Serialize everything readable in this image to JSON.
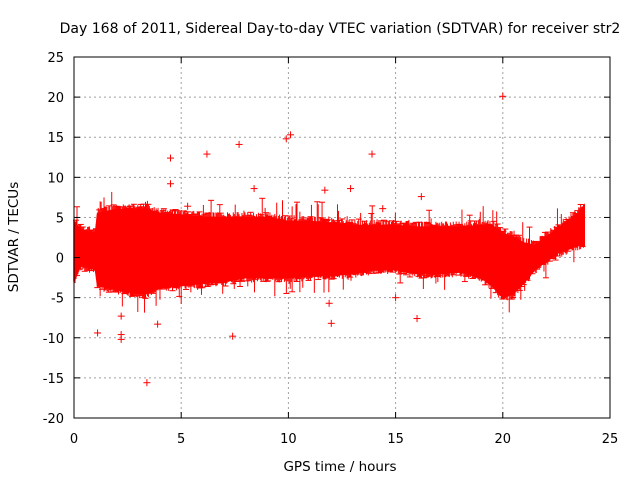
{
  "chart_data": {
    "type": "scatter",
    "title": "Day 168 of 2011, Sidereal Day-to-day VTEC variation (SDTVAR) for receiver str2",
    "xlabel": "GPS time / hours",
    "ylabel": "SDTVAR / TECUs",
    "xlim": [
      0,
      25
    ],
    "ylim": [
      -20,
      25
    ],
    "xticks": [
      0,
      5,
      10,
      15,
      20,
      25
    ],
    "xtick_labels": [
      "0",
      "5",
      "10",
      "15",
      "20",
      "25"
    ],
    "yticks": [
      -20,
      -15,
      -10,
      -5,
      0,
      5,
      10,
      15,
      20,
      25
    ],
    "ytick_labels": [
      "-20",
      "-15",
      "-10",
      "-5",
      "0",
      "5",
      "10",
      "15",
      "20",
      "25"
    ],
    "grid": true,
    "marker": "+",
    "color": "#ff0000",
    "band": {
      "x": [
        0.0,
        0.3,
        1.0,
        1.1,
        2.0,
        3.0,
        3.4,
        4.0,
        5.0,
        6.0,
        7.0,
        8.0,
        9.0,
        10.0,
        11.0,
        12.0,
        13.0,
        14.0,
        15.0,
        16.0,
        17.0,
        18.0,
        19.0,
        19.5,
        20.0,
        20.5,
        21.0,
        21.5,
        22.0,
        22.5,
        23.0,
        23.5,
        23.8
      ],
      "upper": [
        4.5,
        3.5,
        3.0,
        5.5,
        6.0,
        6.0,
        6.0,
        5.5,
        5.3,
        5.0,
        5.0,
        5.0,
        5.0,
        4.5,
        4.5,
        4.3,
        4.0,
        4.0,
        4.0,
        3.8,
        3.8,
        3.8,
        4.0,
        4.0,
        3.0,
        2.5,
        1.8,
        1.5,
        2.5,
        3.5,
        4.5,
        5.5,
        6.5
      ],
      "lower": [
        -3.0,
        -1.0,
        -1.5,
        -3.5,
        -4.0,
        -4.5,
        -4.5,
        -3.8,
        -3.5,
        -3.2,
        -3.0,
        -2.5,
        -2.5,
        -2.5,
        -2.3,
        -2.2,
        -2.0,
        -1.5,
        -1.5,
        -2.0,
        -2.0,
        -1.8,
        -2.5,
        -3.5,
        -5.0,
        -4.5,
        -3.0,
        -1.5,
        -0.5,
        0.5,
        1.0,
        1.5,
        1.5
      ]
    },
    "outliers": [
      {
        "x": 20.0,
        "y": 20.1
      },
      {
        "x": 10.1,
        "y": 15.3
      },
      {
        "x": 9.9,
        "y": 14.8
      },
      {
        "x": 7.7,
        "y": 14.1
      },
      {
        "x": 6.2,
        "y": 12.9
      },
      {
        "x": 4.5,
        "y": 12.4
      },
      {
        "x": 13.9,
        "y": 12.9
      },
      {
        "x": 4.5,
        "y": 9.2
      },
      {
        "x": 8.4,
        "y": 8.6
      },
      {
        "x": 11.7,
        "y": 8.4
      },
      {
        "x": 12.9,
        "y": 8.6
      },
      {
        "x": 16.2,
        "y": 7.6
      },
      {
        "x": 5.3,
        "y": 6.4
      },
      {
        "x": 14.4,
        "y": 6.1
      },
      {
        "x": 1.1,
        "y": -9.4
      },
      {
        "x": 2.2,
        "y": -9.6
      },
      {
        "x": 2.2,
        "y": -10.2
      },
      {
        "x": 3.9,
        "y": -8.3
      },
      {
        "x": 3.4,
        "y": -15.6
      },
      {
        "x": 7.4,
        "y": -9.8
      },
      {
        "x": 12.0,
        "y": -8.2
      },
      {
        "x": 11.9,
        "y": -5.7
      },
      {
        "x": 16.0,
        "y": -7.6
      },
      {
        "x": 15.0,
        "y": -5.0
      },
      {
        "x": 2.2,
        "y": -7.3
      }
    ]
  }
}
